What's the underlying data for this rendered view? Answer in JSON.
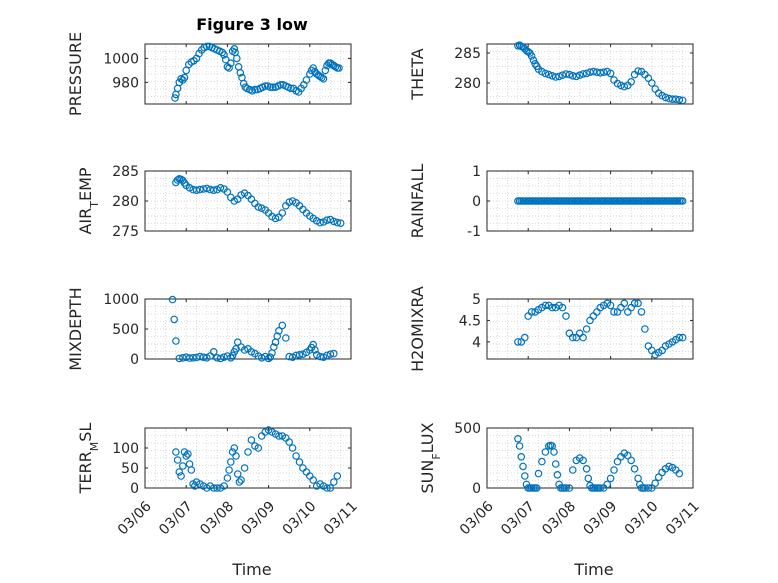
{
  "figure": {
    "title": "Figure 3 low",
    "x_label": "Time",
    "date_ticks": [
      "03/06",
      "03/07",
      "03/08",
      "03/09",
      "03/10",
      "03/11"
    ],
    "marker_color": "#0072BD",
    "grid": "minor dotted"
  },
  "chart_data": [
    {
      "type": "scatter",
      "id": "pressure",
      "ylabel": [
        {
          "t": "PRESSURE"
        }
      ],
      "yticks": [
        980,
        1000
      ],
      "ylim": [
        962,
        1012
      ],
      "xlim": [
        "03/06",
        "03/11"
      ],
      "x_ticks_shown": false,
      "x": [
        "03/06 17:30",
        "03/06 18:00",
        "03/06 19:00",
        "03/06 20:00",
        "03/06 21:00",
        "03/06 22:00",
        "03/06 23:00",
        "03/07 00:00",
        "03/07 01:30",
        "03/07 03:00",
        "03/07 04:30",
        "03/07 06:00",
        "03/07 07:30",
        "03/07 09:00",
        "03/07 10:30",
        "03/07 12:00",
        "03/07 13:30",
        "03/07 15:00",
        "03/07 16:30",
        "03/07 18:00",
        "03/07 19:30",
        "03/07 21:00",
        "03/07 22:00",
        "03/07 23:00",
        "03/08 00:00",
        "03/08 01:00",
        "03/08 02:00",
        "03/08 03:00",
        "03/08 04:00",
        "03/08 04:30",
        "03/08 05:30",
        "03/08 06:30",
        "03/08 07:30",
        "03/08 08:30",
        "03/08 09:30",
        "03/08 10:30",
        "03/08 11:30",
        "03/08 13:00",
        "03/08 14:30",
        "03/08 16:00",
        "03/08 17:30",
        "03/08 19:00",
        "03/08 20:30",
        "03/08 22:00",
        "03/08 23:30",
        "03/09 01:00",
        "03/09 02:30",
        "03/09 04:00",
        "03/09 05:30",
        "03/09 07:00",
        "03/09 08:30",
        "03/09 10:00",
        "03/09 11:30",
        "03/09 13:00",
        "03/09 14:30",
        "03/09 16:00",
        "03/09 17:30",
        "03/09 19:00",
        "03/09 20:30",
        "03/09 22:00",
        "03/10 00:00",
        "03/10 01:00",
        "03/10 02:00",
        "03/10 03:00",
        "03/10 04:00",
        "03/10 05:00",
        "03/10 06:00",
        "03/10 07:00",
        "03/10 08:00",
        "03/10 09:00",
        "03/10 10:00",
        "03/10 11:00",
        "03/10 12:00",
        "03/10 13:00",
        "03/10 14:00",
        "03/10 15:00",
        "03/10 16:00",
        "03/10 17:00"
      ],
      "y": [
        967,
        970,
        975,
        980,
        983,
        982,
        984,
        990,
        995,
        997,
        998,
        1000,
        1004,
        1007,
        1009,
        1010,
        1010,
        1009,
        1008,
        1007,
        1006,
        1005,
        1003,
        999,
        993,
        992,
        996,
        1006,
        1008,
        1005,
        1000,
        993,
        988,
        984,
        979,
        976,
        975,
        974,
        973,
        974,
        974,
        975,
        976,
        977,
        977,
        976,
        976,
        976,
        977,
        978,
        978,
        977,
        976,
        975,
        975,
        973,
        972,
        975,
        978,
        982,
        987,
        990,
        992,
        989,
        987,
        986,
        985,
        984,
        983,
        990,
        994,
        996,
        996,
        995,
        994,
        993,
        992,
        992
      ]
    },
    {
      "type": "scatter",
      "id": "theta",
      "ylabel": [
        {
          "t": "THETA"
        }
      ],
      "yticks": [
        280,
        285
      ],
      "ylim": [
        276.5,
        286.5
      ],
      "xlim": [
        "03/06",
        "03/11"
      ],
      "x_ticks_shown": false,
      "x": [
        "03/06 18:00",
        "03/06 19:00",
        "03/06 20:00",
        "03/06 21:00",
        "03/06 22:00",
        "03/06 23:00",
        "03/07 00:00",
        "03/07 01:00",
        "03/07 02:00",
        "03/07 03:00",
        "03/07 04:00",
        "03/07 05:00",
        "03/07 06:00",
        "03/07 08:00",
        "03/07 10:00",
        "03/07 12:00",
        "03/07 14:00",
        "03/07 16:00",
        "03/07 18:00",
        "03/07 20:00",
        "03/07 22:00",
        "03/08 00:00",
        "03/08 02:00",
        "03/08 04:00",
        "03/08 06:00",
        "03/08 08:00",
        "03/08 10:00",
        "03/08 12:00",
        "03/08 14:00",
        "03/08 16:00",
        "03/08 18:00",
        "03/08 20:00",
        "03/08 22:00",
        "03/09 00:00",
        "03/09 02:00",
        "03/09 04:00",
        "03/09 06:00",
        "03/09 08:00",
        "03/09 10:00",
        "03/09 12:00",
        "03/09 14:00",
        "03/09 16:00",
        "03/09 18:00",
        "03/09 20:00",
        "03/09 22:00",
        "03/10 00:00",
        "03/10 02:00",
        "03/10 04:00",
        "03/10 06:00",
        "03/10 08:00",
        "03/10 10:00",
        "03/10 12:00",
        "03/10 14:00",
        "03/10 16:00",
        "03/10 18:00"
      ],
      "y": [
        286.2,
        286.3,
        286.1,
        286.0,
        285.7,
        285.4,
        285.2,
        285.0,
        284.5,
        283.8,
        283.2,
        282.8,
        282.3,
        281.9,
        281.6,
        281.4,
        281.2,
        281.0,
        281.1,
        281.3,
        281.5,
        281.4,
        281.2,
        281.1,
        281.3,
        281.5,
        281.6,
        281.8,
        281.9,
        281.8,
        281.7,
        281.8,
        281.9,
        281.6,
        280.5,
        279.9,
        279.6,
        279.4,
        279.6,
        280.2,
        281.4,
        282.0,
        281.9,
        281.4,
        280.8,
        280.0,
        279.0,
        278.3,
        277.9,
        277.6,
        277.4,
        277.3,
        277.3,
        277.2,
        277.1
      ]
    },
    {
      "type": "scatter",
      "id": "air_temp",
      "ylabel": [
        {
          "t": "AIR"
        },
        {
          "t": "T",
          "sub": true
        },
        {
          "t": "EMP"
        }
      ],
      "yticks": [
        275,
        280,
        285
      ],
      "ylim": [
        275,
        285
      ],
      "xlim": [
        "03/06",
        "03/11"
      ],
      "x_ticks_shown": false,
      "x": [
        "03/06 18:00",
        "03/06 19:00",
        "03/06 20:00",
        "03/06 21:00",
        "03/06 22:00",
        "03/06 23:00",
        "03/07 00:00",
        "03/07 02:00",
        "03/07 04:00",
        "03/07 06:00",
        "03/07 08:00",
        "03/07 10:00",
        "03/07 12:00",
        "03/07 14:00",
        "03/07 16:00",
        "03/07 18:00",
        "03/07 20:00",
        "03/07 22:00",
        "03/08 00:00",
        "03/08 02:00",
        "03/08 04:00",
        "03/08 06:00",
        "03/08 08:00",
        "03/08 10:00",
        "03/08 12:00",
        "03/08 14:00",
        "03/08 16:00",
        "03/08 18:00",
        "03/08 20:00",
        "03/08 22:00",
        "03/09 00:00",
        "03/09 02:00",
        "03/09 04:00",
        "03/09 06:00",
        "03/09 08:00",
        "03/09 10:00",
        "03/09 12:00",
        "03/09 14:00",
        "03/09 16:00",
        "03/09 18:00",
        "03/09 20:00",
        "03/09 22:00",
        "03/10 00:00",
        "03/10 02:00",
        "03/10 04:00",
        "03/10 06:00",
        "03/10 08:00",
        "03/10 10:00",
        "03/10 12:00",
        "03/10 14:00",
        "03/10 16:00",
        "03/10 18:00"
      ],
      "y": [
        283.1,
        283.5,
        283.7,
        283.6,
        283.4,
        283.0,
        282.6,
        282.2,
        281.9,
        281.8,
        281.9,
        282.0,
        282.1,
        281.9,
        281.8,
        281.9,
        282.2,
        282.0,
        281.5,
        280.6,
        280.0,
        280.3,
        281.0,
        281.3,
        280.9,
        280.3,
        279.6,
        279.0,
        278.8,
        278.5,
        278.0,
        277.4,
        277.1,
        277.3,
        278.0,
        279.2,
        279.8,
        280.0,
        279.7,
        279.2,
        278.6,
        278.0,
        277.5,
        277.1,
        276.7,
        276.4,
        276.5,
        276.8,
        276.9,
        276.6,
        276.4,
        276.3
      ]
    },
    {
      "type": "scatter",
      "id": "rainfall",
      "ylabel": [
        {
          "t": "RAINFALL"
        }
      ],
      "yticks": [
        -1,
        0,
        1
      ],
      "ylim": [
        -1,
        1
      ],
      "xlim": [
        "03/06",
        "03/11"
      ],
      "x_ticks_shown": false,
      "x_start": "03/06 18:00",
      "x_end": "03/10 18:00",
      "step_hours": 1,
      "constant_y": 0
    },
    {
      "type": "scatter",
      "id": "mixdepth",
      "ylabel": [
        {
          "t": "MIXDEPTH"
        }
      ],
      "yticks": [
        0,
        500,
        1000
      ],
      "ylim": [
        0,
        1000
      ],
      "xlim": [
        "03/06",
        "03/11"
      ],
      "x_ticks_shown": false,
      "x": [
        "03/06 16:00",
        "03/06 17:00",
        "03/06 18:00",
        "03/06 20:00",
        "03/06 22:00",
        "03/07 00:00",
        "03/07 02:00",
        "03/07 04:00",
        "03/07 06:00",
        "03/07 08:00",
        "03/07 10:00",
        "03/07 12:00",
        "03/07 14:00",
        "03/07 16:00",
        "03/07 18:00",
        "03/07 20:00",
        "03/07 22:00",
        "03/08 00:00",
        "03/08 02:00",
        "03/08 03:00",
        "03/08 04:00",
        "03/08 05:00",
        "03/08 06:00",
        "03/08 08:00",
        "03/08 10:00",
        "03/08 12:00",
        "03/08 14:00",
        "03/08 16:00",
        "03/08 18:00",
        "03/08 20:00",
        "03/08 22:00",
        "03/09 00:00",
        "03/09 01:00",
        "03/09 02:00",
        "03/09 03:00",
        "03/09 04:00",
        "03/09 05:00",
        "03/09 06:00",
        "03/09 08:00",
        "03/09 10:00",
        "03/09 12:00",
        "03/09 14:00",
        "03/09 16:00",
        "03/09 18:00",
        "03/09 20:00",
        "03/09 22:00",
        "03/10 00:00",
        "03/10 01:00",
        "03/10 02:00",
        "03/10 03:00",
        "03/10 04:00",
        "03/10 06:00",
        "03/10 08:00",
        "03/10 10:00",
        "03/10 12:00",
        "03/10 14:00"
      ],
      "y": [
        990,
        660,
        300,
        10,
        20,
        30,
        15,
        20,
        25,
        40,
        30,
        20,
        50,
        120,
        20,
        10,
        30,
        50,
        20,
        60,
        120,
        170,
        280,
        200,
        150,
        170,
        120,
        90,
        50,
        20,
        40,
        10,
        30,
        100,
        200,
        280,
        380,
        470,
        560,
        350,
        40,
        30,
        60,
        70,
        80,
        110,
        150,
        190,
        240,
        150,
        70,
        40,
        30,
        60,
        80,
        90
      ]
    },
    {
      "type": "scatter",
      "id": "h2omixra",
      "ylabel": [
        {
          "t": "H2OMIXRA"
        }
      ],
      "yticks": [
        4,
        4.5,
        5
      ],
      "ylim": [
        3.6,
        5
      ],
      "xlim": [
        "03/06",
        "03/11"
      ],
      "x_ticks_shown": false,
      "x": [
        "03/06 18:00",
        "03/06 20:00",
        "03/06 22:00",
        "03/07 00:00",
        "03/07 02:00",
        "03/07 04:00",
        "03/07 06:00",
        "03/07 08:00",
        "03/07 10:00",
        "03/07 12:00",
        "03/07 14:00",
        "03/07 16:00",
        "03/07 18:00",
        "03/07 20:00",
        "03/07 22:00",
        "03/08 00:00",
        "03/08 02:00",
        "03/08 04:00",
        "03/08 06:00",
        "03/08 08:00",
        "03/08 10:00",
        "03/08 12:00",
        "03/08 14:00",
        "03/08 16:00",
        "03/08 18:00",
        "03/08 20:00",
        "03/08 22:00",
        "03/09 00:00",
        "03/09 02:00",
        "03/09 04:00",
        "03/09 06:00",
        "03/09 08:00",
        "03/09 10:00",
        "03/09 12:00",
        "03/09 14:00",
        "03/09 16:00",
        "03/09 18:00",
        "03/09 20:00",
        "03/09 22:00",
        "03/10 00:00",
        "03/10 02:00",
        "03/10 04:00",
        "03/10 06:00",
        "03/10 08:00",
        "03/10 10:00",
        "03/10 12:00",
        "03/10 14:00",
        "03/10 16:00",
        "03/10 18:00"
      ],
      "y": [
        4.0,
        4.0,
        4.1,
        4.6,
        4.7,
        4.7,
        4.75,
        4.8,
        4.85,
        4.85,
        4.8,
        4.8,
        4.85,
        4.8,
        4.6,
        4.2,
        4.1,
        4.1,
        4.2,
        4.1,
        4.3,
        4.5,
        4.6,
        4.7,
        4.8,
        4.85,
        4.9,
        4.85,
        4.7,
        4.7,
        4.8,
        4.9,
        4.7,
        4.8,
        4.9,
        4.9,
        4.7,
        4.3,
        3.9,
        3.8,
        3.7,
        3.75,
        3.8,
        3.9,
        3.95,
        4.0,
        4.05,
        4.1,
        4.1
      ]
    },
    {
      "type": "scatter",
      "id": "terr_msl",
      "ylabel": [
        {
          "t": "TERR"
        },
        {
          "t": "M",
          "sub": true
        },
        {
          "t": "SL"
        }
      ],
      "yticks": [
        0,
        50,
        100
      ],
      "ylim": [
        0,
        150
      ],
      "xlim": [
        "03/06",
        "03/11"
      ],
      "x_ticks_shown": true,
      "x": [
        "03/06 18:00",
        "03/06 19:00",
        "03/06 20:00",
        "03/06 21:00",
        "03/06 22:00",
        "03/06 23:00",
        "03/07 00:00",
        "03/07 01:00",
        "03/07 02:00",
        "03/07 03:00",
        "03/07 04:00",
        "03/07 05:00",
        "03/07 06:00",
        "03/07 08:00",
        "03/07 10:00",
        "03/07 12:00",
        "03/07 14:00",
        "03/07 16:00",
        "03/07 18:00",
        "03/07 20:00",
        "03/07 22:00",
        "03/08 00:00",
        "03/08 01:00",
        "03/08 02:00",
        "03/08 03:00",
        "03/08 04:00",
        "03/08 05:00",
        "03/08 06:00",
        "03/08 07:00",
        "03/08 08:00",
        "03/08 10:00",
        "03/08 12:00",
        "03/08 14:00",
        "03/08 16:00",
        "03/08 18:00",
        "03/08 20:00",
        "03/08 22:00",
        "03/09 00:00",
        "03/09 02:00",
        "03/09 04:00",
        "03/09 06:00",
        "03/09 08:00",
        "03/09 10:00",
        "03/09 12:00",
        "03/09 14:00",
        "03/09 16:00",
        "03/09 18:00",
        "03/09 20:00",
        "03/09 22:00",
        "03/10 00:00",
        "03/10 02:00",
        "03/10 04:00",
        "03/10 06:00",
        "03/10 08:00",
        "03/10 10:00",
        "03/10 12:00",
        "03/10 14:00",
        "03/10 16:00"
      ],
      "y": [
        90,
        70,
        40,
        30,
        55,
        90,
        80,
        85,
        60,
        45,
        10,
        5,
        15,
        10,
        5,
        0,
        5,
        0,
        0,
        0,
        5,
        25,
        45,
        65,
        90,
        100,
        80,
        35,
        15,
        20,
        50,
        90,
        120,
        105,
        100,
        130,
        140,
        145,
        140,
        135,
        130,
        130,
        125,
        115,
        100,
        80,
        65,
        50,
        40,
        30,
        20,
        5,
        10,
        5,
        0,
        0,
        15,
        30
      ]
    },
    {
      "type": "scatter",
      "id": "sun_flux",
      "ylabel": [
        {
          "t": "SUN"
        },
        {
          "t": "F",
          "sub": true
        },
        {
          "t": "LUX"
        }
      ],
      "yticks": [
        0,
        500
      ],
      "ylim": [
        0,
        500
      ],
      "xlim": [
        "03/06",
        "03/11"
      ],
      "x_ticks_shown": true,
      "x": [
        "03/06 18:00",
        "03/06 19:00",
        "03/06 20:00",
        "03/06 21:00",
        "03/06 22:00",
        "03/06 23:00",
        "03/07 00:00",
        "03/07 01:00",
        "03/07 02:00",
        "03/07 03:00",
        "03/07 04:00",
        "03/07 05:00",
        "03/07 06:00",
        "03/07 08:00",
        "03/07 10:00",
        "03/07 12:00",
        "03/07 13:00",
        "03/07 14:00",
        "03/07 15:00",
        "03/07 16:00",
        "03/07 17:00",
        "03/07 18:00",
        "03/07 19:00",
        "03/07 20:00",
        "03/07 21:00",
        "03/07 22:00",
        "03/08 00:00",
        "03/08 02:00",
        "03/08 04:00",
        "03/08 06:00",
        "03/08 08:00",
        "03/08 10:00",
        "03/08 11:00",
        "03/08 12:00",
        "03/08 13:00",
        "03/08 14:00",
        "03/08 15:00",
        "03/08 16:00",
        "03/08 17:00",
        "03/08 18:00",
        "03/08 20:00",
        "03/08 22:00",
        "03/09 00:00",
        "03/09 02:00",
        "03/09 04:00",
        "03/09 06:00",
        "03/09 08:00",
        "03/09 10:00",
        "03/09 12:00",
        "03/09 14:00",
        "03/09 16:00",
        "03/09 17:00",
        "03/09 18:00",
        "03/09 19:00",
        "03/09 20:00",
        "03/09 22:00",
        "03/10 00:00",
        "03/10 02:00",
        "03/10 04:00",
        "03/10 06:00",
        "03/10 08:00",
        "03/10 10:00",
        "03/10 12:00",
        "03/10 14:00",
        "03/10 16:00"
      ],
      "y": [
        410,
        350,
        260,
        180,
        100,
        30,
        0,
        0,
        0,
        0,
        0,
        0,
        120,
        220,
        300,
        350,
        355,
        350,
        300,
        200,
        110,
        30,
        0,
        0,
        0,
        0,
        0,
        150,
        230,
        250,
        230,
        160,
        80,
        20,
        0,
        0,
        0,
        0,
        0,
        0,
        0,
        30,
        80,
        150,
        220,
        260,
        290,
        270,
        230,
        160,
        80,
        30,
        0,
        0,
        0,
        0,
        0,
        40,
        90,
        130,
        160,
        180,
        170,
        150,
        120
      ]
    }
  ]
}
